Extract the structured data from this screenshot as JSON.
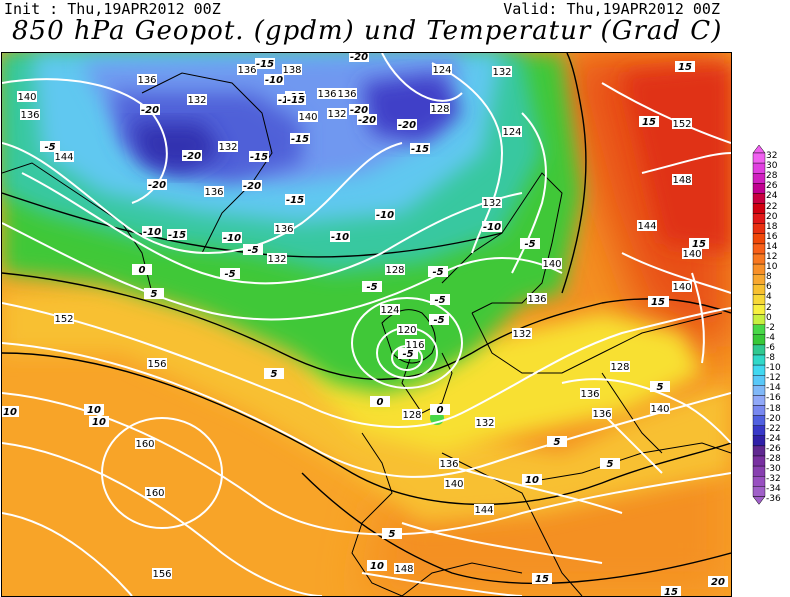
{
  "header": {
    "init": "Init : Thu,19APR2012 00Z",
    "valid": "Valid: Thu,19APR2012 00Z",
    "title": "850 hPa Geopot. (gpdm) und Temperatur (Grad C)"
  },
  "colorbar": {
    "levels": [
      "32",
      "30",
      "28",
      "26",
      "24",
      "22",
      "20",
      "18",
      "16",
      "14",
      "12",
      "10",
      "8",
      "6",
      "4",
      "2",
      "0",
      "-2",
      "-4",
      "-6",
      "-8",
      "-10",
      "-12",
      "-14",
      "-16",
      "-18",
      "-20",
      "-22",
      "-24",
      "-26",
      "-28",
      "-30",
      "-32",
      "-34",
      "-36"
    ],
    "colors": [
      "#f060f0",
      "#e040e0",
      "#d020c0",
      "#c00090",
      "#c80040",
      "#d00010",
      "#e01818",
      "#e83010",
      "#f04808",
      "#f86018",
      "#f87820",
      "#f89028",
      "#f8a830",
      "#f8c030",
      "#f8d838",
      "#f8f040",
      "#c8f040",
      "#48d848",
      "#38c838",
      "#30c890",
      "#30d8c8",
      "#40d8f0",
      "#58c8f8",
      "#80b8f8",
      "#90a8f8",
      "#7888f0",
      "#5060e0",
      "#3838c8",
      "#3020a8",
      "#602890",
      "#7830a0",
      "#8840b0",
      "#9850c0",
      "#a060c8"
    ]
  },
  "map": {
    "contours": [
      {
        "label": "136"
      },
      {
        "label": "132"
      },
      {
        "label": "136"
      },
      {
        "label": "136"
      },
      {
        "label": "132"
      },
      {
        "label": "140"
      },
      {
        "label": "136"
      },
      {
        "label": "144"
      },
      {
        "label": "124"
      },
      {
        "label": "128"
      },
      {
        "label": "124"
      },
      {
        "label": "132"
      },
      {
        "label": "132"
      },
      {
        "label": "136"
      },
      {
        "label": "132"
      },
      {
        "label": "140"
      },
      {
        "label": "128"
      },
      {
        "label": "136"
      },
      {
        "label": "144"
      },
      {
        "label": "140"
      },
      {
        "label": "152"
      },
      {
        "label": "148"
      },
      {
        "label": "128"
      },
      {
        "label": "124"
      },
      {
        "label": "120"
      },
      {
        "label": "116"
      },
      {
        "label": "128"
      },
      {
        "label": "132"
      },
      {
        "label": "136"
      },
      {
        "label": "140"
      },
      {
        "label": "144"
      },
      {
        "label": "148"
      },
      {
        "label": "152"
      },
      {
        "label": "156"
      },
      {
        "label": "160"
      },
      {
        "label": "160"
      },
      {
        "label": "156"
      },
      {
        "label": "132"
      },
      {
        "label": "128"
      },
      {
        "label": "136"
      },
      {
        "label": "140"
      },
      {
        "label": "140"
      },
      {
        "label": "136"
      },
      {
        "label": "138"
      },
      {
        "label": "140"
      },
      {
        "label": "136"
      },
      {
        "label": "132"
      },
      {
        "label": "136"
      }
    ],
    "temps": [
      {
        "label": "-20"
      },
      {
        "label": "-20"
      },
      {
        "label": "-20"
      },
      {
        "label": "-20"
      },
      {
        "label": "-20"
      },
      {
        "label": "-15"
      },
      {
        "label": "-15"
      },
      {
        "label": "-15"
      },
      {
        "label": "-15"
      },
      {
        "label": "-15"
      },
      {
        "label": "-15"
      },
      {
        "label": "-10"
      },
      {
        "label": "-10"
      },
      {
        "label": "-10"
      },
      {
        "label": "-10"
      },
      {
        "label": "-5"
      },
      {
        "label": "-5"
      },
      {
        "label": "-5"
      },
      {
        "label": "-5"
      },
      {
        "label": "-5"
      },
      {
        "label": "-5"
      },
      {
        "label": "-5"
      },
      {
        "label": "-5"
      },
      {
        "label": "-5"
      },
      {
        "label": "-10"
      },
      {
        "label": "-5"
      },
      {
        "label": "0"
      },
      {
        "label": "0"
      },
      {
        "label": "0"
      },
      {
        "label": "0"
      },
      {
        "label": "5"
      },
      {
        "label": "5"
      },
      {
        "label": "5"
      },
      {
        "label": "5"
      },
      {
        "label": "5"
      },
      {
        "label": "5"
      },
      {
        "label": "10"
      },
      {
        "label": "10"
      },
      {
        "label": "10"
      },
      {
        "label": "10"
      },
      {
        "label": "10"
      },
      {
        "label": "15"
      },
      {
        "label": "15"
      },
      {
        "label": "15"
      },
      {
        "label": "15"
      },
      {
        "label": "15"
      },
      {
        "label": "15"
      },
      {
        "label": "20"
      },
      {
        "label": "-20"
      },
      {
        "label": "-15"
      },
      {
        "label": "-10"
      },
      {
        "label": "-15"
      },
      {
        "label": "-20"
      },
      {
        "label": "-20"
      },
      {
        "label": "-15"
      }
    ]
  }
}
